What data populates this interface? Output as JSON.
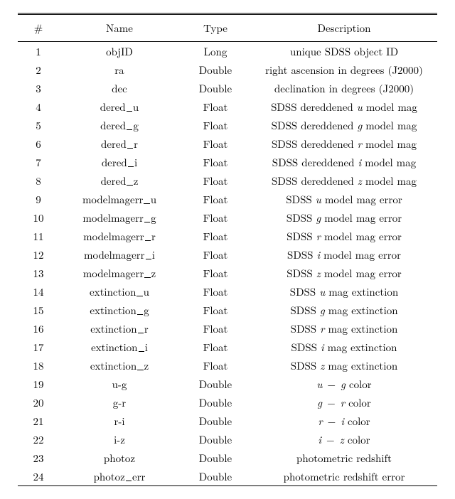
{
  "table": {
    "headers": {
      "num": "#",
      "name": "Name",
      "type": "Type",
      "desc": "Description"
    },
    "col_widths": {
      "num": 38,
      "name": 150,
      "type": 80
    },
    "font_size_pt": 15,
    "rule_color": "#000000",
    "background_color": "#ffffff",
    "text_color": "#000000",
    "rows": [
      {
        "n": "1",
        "name_html": "objID",
        "type": "Long",
        "desc_html": "unique SDSS object ID"
      },
      {
        "n": "2",
        "name_html": "ra",
        "type": "Double",
        "desc_html": "right ascension in degrees (J2000)"
      },
      {
        "n": "3",
        "name_html": "dec",
        "type": "Double",
        "desc_html": "declination in degrees (J2000)"
      },
      {
        "n": "4",
        "name_html": "dered<span class=\"usc\"></span>u",
        "type": "Float",
        "desc_html": "SDSS dereddened <span class=\"math\">u</span> model mag"
      },
      {
        "n": "5",
        "name_html": "dered<span class=\"usc\"></span>g",
        "type": "Float",
        "desc_html": "SDSS dereddened <span class=\"math\">g</span> model mag"
      },
      {
        "n": "6",
        "name_html": "dered<span class=\"usc\"></span>r",
        "type": "Float",
        "desc_html": "SDSS dereddened <span class=\"math\">r</span> model mag"
      },
      {
        "n": "7",
        "name_html": "dered<span class=\"usc\"></span>i",
        "type": "Float",
        "desc_html": "SDSS dereddened <span class=\"math\">i</span> model mag"
      },
      {
        "n": "8",
        "name_html": "dered<span class=\"usc\"></span>z",
        "type": "Float",
        "desc_html": "SDSS dereddened <span class=\"math\">z</span> model mag"
      },
      {
        "n": "9",
        "name_html": "modelmagerr<span class=\"usc\"></span>u",
        "type": "Float",
        "desc_html": "SDSS <span class=\"math\">u</span> model mag error"
      },
      {
        "n": "10",
        "name_html": "modelmagerr<span class=\"usc\"></span>g",
        "type": "Float",
        "desc_html": "SDSS <span class=\"math\">g</span> model mag error"
      },
      {
        "n": "11",
        "name_html": "modelmagerr<span class=\"usc\"></span>r",
        "type": "Float",
        "desc_html": "SDSS <span class=\"math\">r</span> model mag error"
      },
      {
        "n": "12",
        "name_html": "modelmagerr<span class=\"usc\"></span>i",
        "type": "Float",
        "desc_html": "SDSS <span class=\"math\">i</span> model mag error"
      },
      {
        "n": "13",
        "name_html": "modelmagerr<span class=\"usc\"></span>z",
        "type": "Float",
        "desc_html": "SDSS <span class=\"math\">z</span> model mag error"
      },
      {
        "n": "14",
        "name_html": "extinction<span class=\"usc\"></span>u",
        "type": "Float",
        "desc_html": "SDSS <span class=\"math\">u</span> mag extinction"
      },
      {
        "n": "15",
        "name_html": "extinction<span class=\"usc\"></span>g",
        "type": "Float",
        "desc_html": "SDSS <span class=\"math\">g</span> mag extinction"
      },
      {
        "n": "16",
        "name_html": "extinction<span class=\"usc\"></span>r",
        "type": "Float",
        "desc_html": "SDSS <span class=\"math\">r</span> mag extinction"
      },
      {
        "n": "17",
        "name_html": "extinction<span class=\"usc\"></span>i",
        "type": "Float",
        "desc_html": "SDSS <span class=\"math\">i</span> mag extinction"
      },
      {
        "n": "18",
        "name_html": "extinction<span class=\"usc\"></span>z",
        "type": "Float",
        "desc_html": "SDSS <span class=\"math\">z</span> mag extinction"
      },
      {
        "n": "19",
        "name_html": "u-g",
        "type": "Double",
        "desc_html": "<span class=\"math\">u</span><span class=\"op\"> − </span><span class=\"math\">g</span> color"
      },
      {
        "n": "20",
        "name_html": "g-r",
        "type": "Double",
        "desc_html": "<span class=\"math\">g</span><span class=\"op\"> − </span><span class=\"math\">r</span> color"
      },
      {
        "n": "21",
        "name_html": "r-i",
        "type": "Double",
        "desc_html": "<span class=\"math\">r</span><span class=\"op\"> − </span><span class=\"math\">i</span> color"
      },
      {
        "n": "22",
        "name_html": "i-z",
        "type": "Double",
        "desc_html": "<span class=\"math\">i</span><span class=\"op\"> − </span><span class=\"math\">z</span> color"
      },
      {
        "n": "23",
        "name_html": "photoz",
        "type": "Double",
        "desc_html": "photometric redshift"
      },
      {
        "n": "24",
        "name_html": "photoz<span class=\"usc\"></span>err",
        "type": "Double",
        "desc_html": "photometric redshift error"
      }
    ]
  }
}
